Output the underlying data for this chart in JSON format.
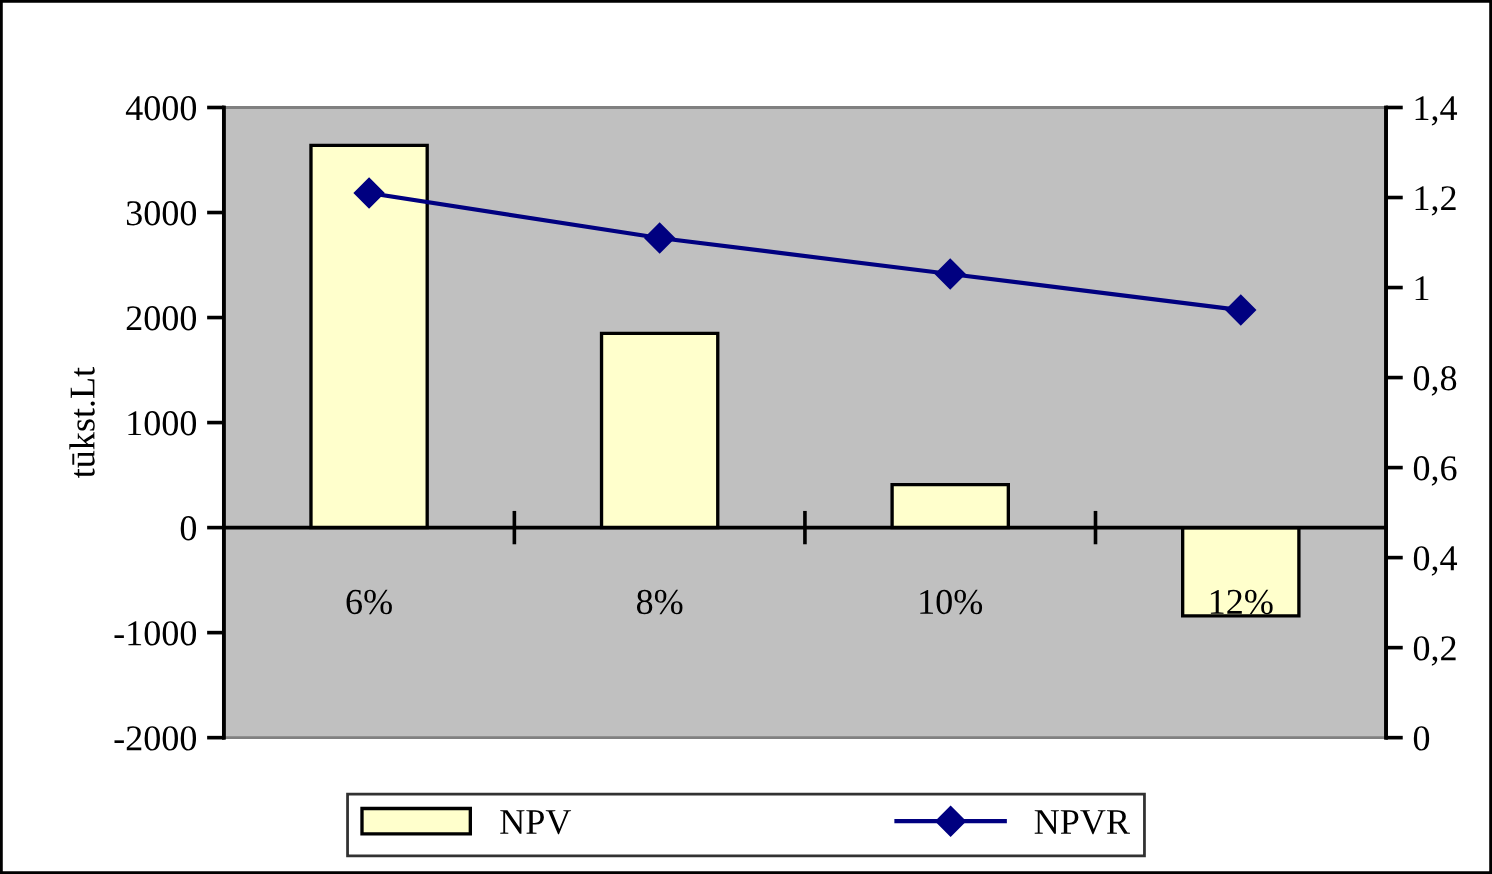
{
  "chart_data": {
    "type": "bar",
    "categories": [
      "6%",
      "8%",
      "10%",
      "12%"
    ],
    "ylabel": "tūkst.Lt",
    "ylim": [
      -2000,
      4000
    ],
    "yticks": [
      {
        "value": -2000,
        "label": "-2000"
      },
      {
        "value": -1000,
        "label": "-1000"
      },
      0,
      1000,
      2000,
      3000,
      4000
    ],
    "y2lim": [
      0,
      1.4
    ],
    "y2ticks": [
      0,
      {
        "value": 0.2,
        "label": "0,2"
      },
      {
        "value": 0.4,
        "label": "0,4"
      },
      {
        "value": 0.6,
        "label": "0,6"
      },
      {
        "value": 0.8,
        "label": "0,8"
      },
      1,
      {
        "value": 1.2,
        "label": "1,2"
      },
      {
        "value": 1.4,
        "label": "1,4"
      }
    ],
    "grid": false,
    "legend": "bottom",
    "series": [
      {
        "name": "NPV",
        "color": "#ffffcc",
        "values": [
          3640,
          1850,
          410,
          -840
        ]
      },
      {
        "name": "NPVR",
        "type": "line",
        "axis": "y2",
        "color": "#000080",
        "marker": "diamond",
        "line_style": "solid",
        "values": [
          1.21,
          1.11,
          1.03,
          0.95
        ]
      }
    ]
  }
}
